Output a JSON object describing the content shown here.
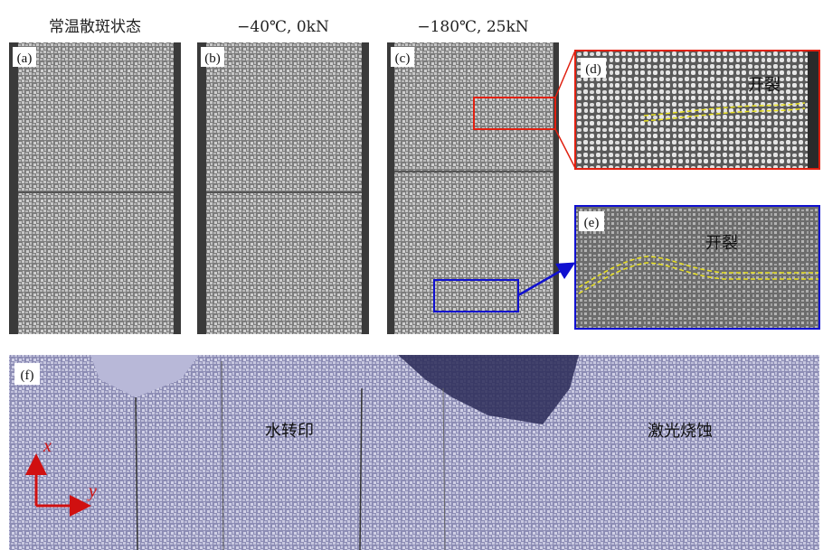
{
  "headers": [
    "常温散斑状态",
    "−40℃, 0kN",
    "−180℃, 25kN"
  ],
  "panels": [
    {
      "label": "(a)"
    },
    {
      "label": "(b)"
    },
    {
      "label": "(c)"
    },
    {
      "label": "(d)",
      "annotation": "开裂"
    },
    {
      "label": "(e)",
      "annotation": "开裂"
    },
    {
      "label": "(f)",
      "regions": [
        "水转印",
        "激光烧蚀"
      ],
      "axes": [
        "x",
        "y"
      ]
    }
  ]
}
